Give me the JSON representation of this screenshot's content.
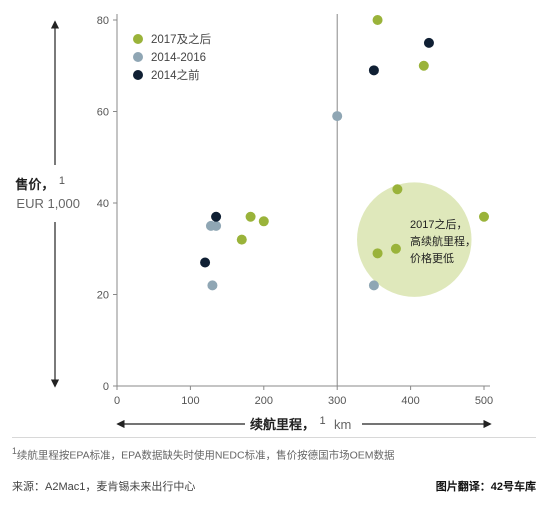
{
  "chart_data": {
    "type": "scatter",
    "ylabel": "售价，",
    "ylabel_sup": "1",
    "yunit": "EUR 1,000",
    "xlabel": "续航里程，",
    "xlabel_sup": "1",
    "xunit": "km",
    "xlim": [
      0,
      500
    ],
    "ylim": [
      0,
      80
    ],
    "xticks": [
      0,
      100,
      200,
      300,
      400,
      500
    ],
    "yticks": [
      0,
      20,
      40,
      60,
      80
    ],
    "reference_x": 300,
    "legend_position": "top-left",
    "series": [
      {
        "name": "2017及之后",
        "color": "#9ab33a",
        "points": [
          {
            "x": 170,
            "y": 32
          },
          {
            "x": 182,
            "y": 37
          },
          {
            "x": 200,
            "y": 36
          },
          {
            "x": 355,
            "y": 29
          },
          {
            "x": 380,
            "y": 30
          },
          {
            "x": 382,
            "y": 43
          },
          {
            "x": 355,
            "y": 80
          },
          {
            "x": 418,
            "y": 70
          },
          {
            "x": 500,
            "y": 37
          }
        ]
      },
      {
        "name": "2014-2016",
        "color": "#8fa6b4",
        "points": [
          {
            "x": 128,
            "y": 35
          },
          {
            "x": 135,
            "y": 35
          },
          {
            "x": 130,
            "y": 22
          },
          {
            "x": 300,
            "y": 59
          },
          {
            "x": 350,
            "y": 22
          }
        ]
      },
      {
        "name": "2014之前",
        "color": "#0f1f33",
        "points": [
          {
            "x": 120,
            "y": 27
          },
          {
            "x": 135,
            "y": 37
          },
          {
            "x": 350,
            "y": 69
          },
          {
            "x": 425,
            "y": 75
          }
        ]
      }
    ],
    "highlight": {
      "center": {
        "x": 405,
        "y": 32
      },
      "radius_x": 78,
      "color": "#dfe8bb",
      "label_lines": [
        "2017之后，",
        "高续航里程，",
        "价格更低"
      ]
    }
  },
  "footnote": {
    "sup": "1",
    "text": "续航里程按EPA标准，EPA数据缺失时使用NEDC标准，售价按德国市场OEM数据"
  },
  "source": "来源：A2Mac1，麦肯锡未来出行中心",
  "credit": "图片翻译：42号车库"
}
